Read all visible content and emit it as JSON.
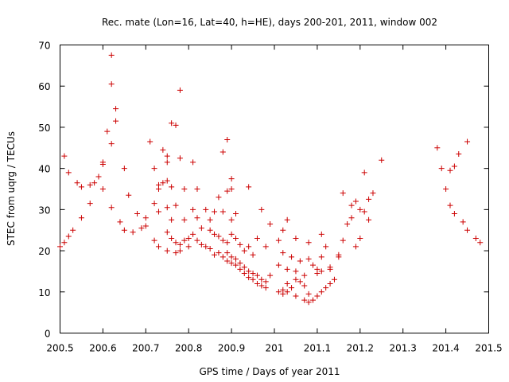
{
  "chart_data": {
    "type": "scatter",
    "title": "Rec. mate (Lon=16, Lat=40, h=HE), days 200-201, 2011, window 002",
    "xlabel": "GPS time / Days of year 2011",
    "ylabel": "STEC from uqrg / TECUs",
    "xlim": [
      200.5,
      201.5
    ],
    "ylim": [
      0,
      70
    ],
    "xticks": [
      200.5,
      200.6,
      200.7,
      200.8,
      200.9,
      201,
      201.1,
      201.2,
      201.3,
      201.4,
      201.5
    ],
    "xtick_labels": [
      "200.5",
      "200.6",
      "200.7",
      "200.8",
      "200.9",
      "201",
      "201.1",
      "201.2",
      "201.3",
      "201.4",
      "201.5"
    ],
    "yticks": [
      0,
      10,
      20,
      30,
      40,
      50,
      60,
      70
    ],
    "ytick_labels": [
      "0",
      "10",
      "20",
      "30",
      "40",
      "50",
      "60",
      "70"
    ],
    "grid": false,
    "marker": "plus",
    "color": "#cc0000",
    "series": [
      {
        "name": "STEC",
        "points": [
          [
            200.5,
            21.0
          ],
          [
            200.51,
            22.0
          ],
          [
            200.52,
            23.5
          ],
          [
            200.53,
            25.0
          ],
          [
            200.55,
            28.0
          ],
          [
            200.57,
            31.5
          ],
          [
            200.6,
            35.0
          ],
          [
            200.51,
            43.0
          ],
          [
            200.52,
            39.0
          ],
          [
            200.54,
            36.5
          ],
          [
            200.55,
            35.5
          ],
          [
            200.57,
            36.0
          ],
          [
            200.58,
            36.5
          ],
          [
            200.59,
            38.0
          ],
          [
            200.6,
            41.0
          ],
          [
            200.61,
            49.0
          ],
          [
            200.62,
            46.0
          ],
          [
            200.62,
            60.5
          ],
          [
            200.62,
            67.5
          ],
          [
            200.63,
            54.5
          ],
          [
            200.63,
            51.5
          ],
          [
            200.65,
            40.0
          ],
          [
            200.6,
            41.5
          ],
          [
            200.62,
            30.5
          ],
          [
            200.64,
            27.0
          ],
          [
            200.65,
            25.0
          ],
          [
            200.67,
            24.5
          ],
          [
            200.69,
            25.5
          ],
          [
            200.7,
            26.0
          ],
          [
            200.72,
            22.5
          ],
          [
            200.73,
            21.0
          ],
          [
            200.75,
            20.0
          ],
          [
            200.77,
            19.5
          ],
          [
            200.78,
            20.0
          ],
          [
            200.8,
            21.0
          ],
          [
            200.66,
            33.5
          ],
          [
            200.68,
            29.0
          ],
          [
            200.7,
            28.0
          ],
          [
            200.71,
            46.5
          ],
          [
            200.72,
            40.0
          ],
          [
            200.72,
            31.5
          ],
          [
            200.73,
            36.0
          ],
          [
            200.73,
            35.0
          ],
          [
            200.73,
            29.5
          ],
          [
            200.74,
            44.5
          ],
          [
            200.74,
            36.5
          ],
          [
            200.75,
            43.0
          ],
          [
            200.75,
            41.5
          ],
          [
            200.75,
            37.0
          ],
          [
            200.75,
            30.5
          ],
          [
            200.76,
            51.0
          ],
          [
            200.76,
            35.5
          ],
          [
            200.76,
            27.5
          ],
          [
            200.77,
            50.5
          ],
          [
            200.77,
            31.0
          ],
          [
            200.78,
            59.0
          ],
          [
            200.78,
            42.5
          ],
          [
            200.79,
            35.0
          ],
          [
            200.79,
            27.5
          ],
          [
            200.75,
            24.5
          ],
          [
            200.76,
            23.0
          ],
          [
            200.77,
            22.0
          ],
          [
            200.78,
            21.5
          ],
          [
            200.79,
            22.5
          ],
          [
            200.8,
            23.0
          ],
          [
            200.81,
            41.5
          ],
          [
            200.81,
            30.0
          ],
          [
            200.82,
            35.0
          ],
          [
            200.82,
            28.0
          ],
          [
            200.83,
            25.5
          ],
          [
            200.84,
            30.0
          ],
          [
            200.85,
            27.5
          ],
          [
            200.86,
            29.5
          ],
          [
            200.87,
            33.0
          ],
          [
            200.88,
            44.0
          ],
          [
            200.88,
            29.5
          ],
          [
            200.89,
            47.0
          ],
          [
            200.89,
            34.5
          ],
          [
            200.9,
            37.5
          ],
          [
            200.9,
            35.0
          ],
          [
            200.81,
            24.0
          ],
          [
            200.82,
            22.5
          ],
          [
            200.83,
            21.5
          ],
          [
            200.84,
            21.0
          ],
          [
            200.85,
            20.5
          ],
          [
            200.86,
            19.0
          ],
          [
            200.87,
            19.5
          ],
          [
            200.88,
            18.5
          ],
          [
            200.89,
            17.5
          ],
          [
            200.9,
            17.0
          ],
          [
            200.91,
            16.5
          ],
          [
            200.92,
            15.5
          ],
          [
            200.93,
            14.5
          ],
          [
            200.94,
            13.5
          ],
          [
            200.95,
            13.0
          ],
          [
            200.96,
            12.0
          ],
          [
            200.97,
            11.5
          ],
          [
            200.98,
            11.0
          ],
          [
            200.85,
            25.0
          ],
          [
            200.86,
            24.0
          ],
          [
            200.87,
            23.5
          ],
          [
            200.88,
            22.5
          ],
          [
            200.89,
            22.0
          ],
          [
            200.9,
            24.0
          ],
          [
            200.9,
            27.5
          ],
          [
            200.91,
            23.0
          ],
          [
            200.91,
            29.0
          ],
          [
            200.92,
            21.5
          ],
          [
            200.93,
            20.0
          ],
          [
            200.94,
            21.0
          ],
          [
            200.94,
            35.5
          ],
          [
            200.95,
            19.0
          ],
          [
            200.96,
            23.0
          ],
          [
            200.97,
            30.0
          ],
          [
            200.98,
            21.0
          ],
          [
            200.99,
            26.5
          ],
          [
            200.89,
            19.5
          ],
          [
            200.9,
            18.5
          ],
          [
            200.91,
            18.0
          ],
          [
            200.92,
            17.0
          ],
          [
            200.93,
            16.0
          ],
          [
            200.94,
            15.0
          ],
          [
            200.95,
            14.5
          ],
          [
            200.96,
            14.0
          ],
          [
            200.97,
            13.0
          ],
          [
            200.98,
            12.5
          ],
          [
            200.99,
            14.0
          ],
          [
            201.01,
            16.5
          ],
          [
            201.01,
            22.5
          ],
          [
            201.02,
            25.0
          ],
          [
            201.02,
            19.5
          ],
          [
            201.03,
            27.5
          ],
          [
            201.03,
            15.5
          ],
          [
            201.04,
            18.5
          ],
          [
            201.05,
            23.0
          ],
          [
            201.05,
            15.0
          ],
          [
            201.06,
            17.5
          ],
          [
            201.07,
            14.0
          ],
          [
            201.08,
            18.0
          ],
          [
            201.08,
            22.0
          ],
          [
            201.09,
            16.5
          ],
          [
            201.1,
            15.5
          ],
          [
            201.11,
            24.0
          ],
          [
            201.11,
            18.5
          ],
          [
            201.12,
            21.0
          ],
          [
            201.13,
            16.0
          ],
          [
            201.01,
            10.0
          ],
          [
            201.02,
            10.5
          ],
          [
            201.03,
            12.0
          ],
          [
            201.04,
            11.0
          ],
          [
            201.05,
            13.0
          ],
          [
            201.06,
            12.5
          ],
          [
            201.07,
            11.5
          ],
          [
            201.08,
            9.5
          ],
          [
            201.09,
            8.0
          ],
          [
            201.1,
            9.0
          ],
          [
            201.11,
            10.0
          ],
          [
            201.12,
            11.0
          ],
          [
            201.13,
            12.0
          ],
          [
            201.02,
            9.5
          ],
          [
            201.03,
            10.0
          ],
          [
            201.05,
            9.0
          ],
          [
            201.07,
            8.0
          ],
          [
            201.08,
            7.5
          ],
          [
            201.1,
            14.5
          ],
          [
            201.11,
            15.0
          ],
          [
            201.13,
            15.5
          ],
          [
            201.14,
            13.0
          ],
          [
            201.15,
            19.0
          ],
          [
            201.15,
            18.5
          ],
          [
            201.16,
            22.5
          ],
          [
            201.16,
            34.0
          ],
          [
            201.17,
            26.5
          ],
          [
            201.18,
            31.0
          ],
          [
            201.18,
            28.0
          ],
          [
            201.19,
            32.0
          ],
          [
            201.19,
            21.0
          ],
          [
            201.2,
            30.0
          ],
          [
            201.2,
            23.0
          ],
          [
            201.21,
            39.0
          ],
          [
            201.21,
            29.5
          ],
          [
            201.22,
            32.5
          ],
          [
            201.22,
            27.5
          ],
          [
            201.23,
            34.0
          ],
          [
            201.25,
            42.0
          ],
          [
            201.38,
            45.0
          ],
          [
            201.39,
            40.0
          ],
          [
            201.4,
            35.0
          ],
          [
            201.41,
            31.0
          ],
          [
            201.41,
            39.5
          ],
          [
            201.42,
            29.0
          ],
          [
            201.42,
            40.5
          ],
          [
            201.43,
            43.5
          ],
          [
            201.44,
            27.0
          ],
          [
            201.45,
            25.0
          ],
          [
            201.45,
            46.5
          ],
          [
            201.47,
            23.0
          ],
          [
            201.48,
            22.0
          ]
        ]
      }
    ]
  }
}
